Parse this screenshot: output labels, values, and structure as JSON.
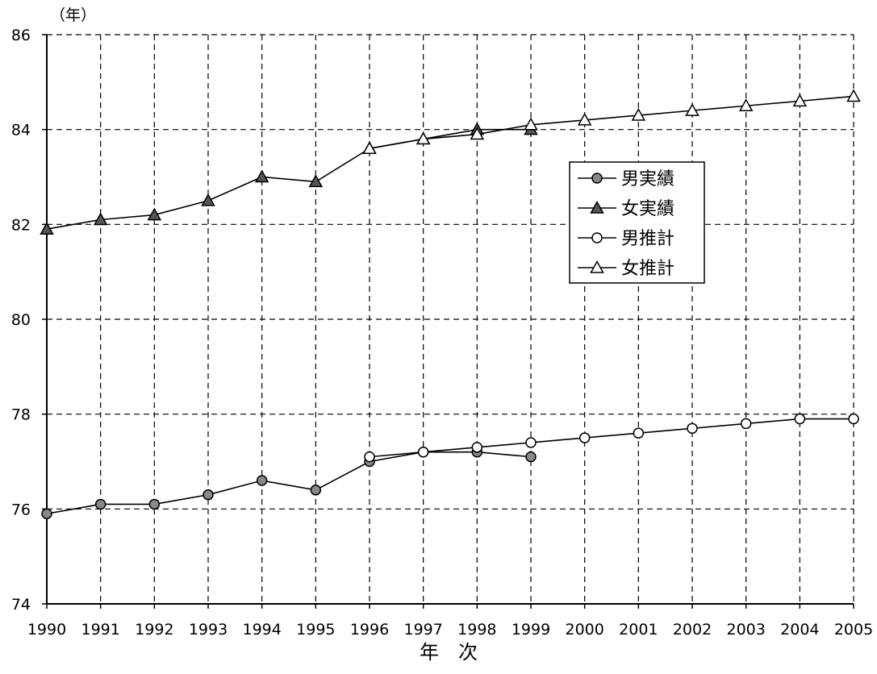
{
  "chart_data": {
    "type": "line",
    "title": "",
    "unit_label": "（年）",
    "xlabel": "年　次",
    "ylabel": "",
    "ylim": [
      74,
      86
    ],
    "yticks": [
      74,
      76,
      78,
      80,
      82,
      84,
      86
    ],
    "categories": [
      "1990",
      "1991",
      "1992",
      "1993",
      "1994",
      "1995",
      "1996",
      "1997",
      "1998",
      "1999",
      "2000",
      "2001",
      "2002",
      "2003",
      "2004",
      "2005"
    ],
    "grid": true,
    "legend_position": "right-upper",
    "series": [
      {
        "name": "男実績",
        "marker": "filled-circle",
        "color": "#000000",
        "marker_fill": "#888888",
        "values": [
          75.9,
          76.1,
          76.1,
          76.3,
          76.6,
          76.4,
          77.0,
          77.2,
          77.2,
          77.1,
          null,
          null,
          null,
          null,
          null,
          null
        ]
      },
      {
        "name": "女実績",
        "marker": "filled-triangle",
        "color": "#000000",
        "marker_fill": "#555555",
        "values": [
          81.9,
          82.1,
          82.2,
          82.5,
          83.0,
          82.9,
          83.6,
          83.8,
          84.0,
          84.0,
          null,
          null,
          null,
          null,
          null,
          null
        ]
      },
      {
        "name": "男推計",
        "marker": "open-circle",
        "color": "#000000",
        "marker_fill": "#ffffff",
        "values": [
          null,
          null,
          null,
          null,
          null,
          null,
          77.1,
          77.2,
          77.3,
          77.4,
          77.5,
          77.6,
          77.7,
          77.8,
          77.9,
          77.9
        ]
      },
      {
        "name": "女推計",
        "marker": "open-triangle",
        "color": "#000000",
        "marker_fill": "#ffffff",
        "values": [
          null,
          null,
          null,
          null,
          null,
          null,
          83.6,
          83.8,
          83.9,
          84.1,
          84.2,
          84.3,
          84.4,
          84.5,
          84.6,
          84.7
        ]
      }
    ]
  }
}
